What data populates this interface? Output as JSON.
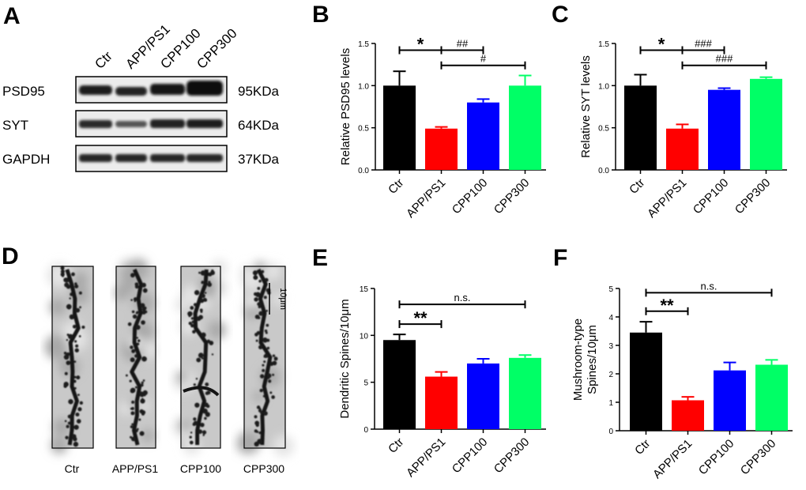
{
  "colors": {
    "ctr": "#000000",
    "app": "#ff0000",
    "cpp100": "#0000ff",
    "cpp300": "#00ff66",
    "axis": "#000000"
  },
  "panelA": {
    "letter": "A",
    "lanes": [
      "Ctr",
      "APP/PS1",
      "CPP100",
      "CPP300"
    ],
    "bands": [
      {
        "name": "PSD95",
        "size": "95KDa"
      },
      {
        "name": "SYT",
        "size": "64KDa"
      },
      {
        "name": "GAPDH",
        "size": "37KDa"
      }
    ]
  },
  "panelD": {
    "letter": "D",
    "labels": [
      "Ctr",
      "APP/PS1",
      "CPP100",
      "CPP300"
    ],
    "scale_label": "10μm"
  },
  "chart_data": [
    {
      "id": "B",
      "letter": "B",
      "type": "bar",
      "categories": [
        "Ctr",
        "APP/PS1",
        "CPP100",
        "CPP300"
      ],
      "values": [
        1.0,
        0.49,
        0.8,
        1.0
      ],
      "errors": [
        0.17,
        0.02,
        0.04,
        0.12
      ],
      "ylabel": "Relative PSD95 levels",
      "ylim": [
        0,
        1.5
      ],
      "yticks": [
        "0.0",
        "0.5",
        "1.0",
        "1.5"
      ],
      "yticks_values": [
        0,
        0.5,
        1.0,
        1.5
      ],
      "significance": [
        {
          "from": 0,
          "to": 1,
          "label": "*",
          "level": 1.42
        },
        {
          "from": 1,
          "to": 2,
          "label": "##",
          "level": 1.42
        },
        {
          "from": 1,
          "to": 3,
          "label": "#",
          "level": 1.24
        }
      ]
    },
    {
      "id": "C",
      "letter": "C",
      "type": "bar",
      "categories": [
        "Ctr",
        "APP/PS1",
        "CPP100",
        "CPP300"
      ],
      "values": [
        1.0,
        0.49,
        0.95,
        1.08
      ],
      "errors": [
        0.13,
        0.05,
        0.02,
        0.02
      ],
      "ylabel": "Relative SYT levels",
      "ylim": [
        0,
        1.5
      ],
      "yticks": [
        "0.0",
        "0.5",
        "1.0",
        "1.5"
      ],
      "yticks_values": [
        0,
        0.5,
        1.0,
        1.5
      ],
      "significance": [
        {
          "from": 0,
          "to": 1,
          "label": "*",
          "level": 1.42
        },
        {
          "from": 1,
          "to": 2,
          "label": "###",
          "level": 1.42
        },
        {
          "from": 1,
          "to": 3,
          "label": "###",
          "level": 1.24
        }
      ]
    },
    {
      "id": "E",
      "letter": "E",
      "type": "bar",
      "categories": [
        "Ctr",
        "APP/PS1",
        "CPP100",
        "CPP300"
      ],
      "values": [
        9.5,
        5.6,
        7.0,
        7.6
      ],
      "errors": [
        0.6,
        0.5,
        0.5,
        0.3
      ],
      "ylabel": "Dendritic Spines/10μm",
      "ylim": [
        0,
        15
      ],
      "yticks": [
        "0",
        "5",
        "10",
        "15"
      ],
      "yticks_values": [
        0,
        5,
        10,
        15
      ],
      "significance": [
        {
          "from": 0,
          "to": 1,
          "label": "**",
          "level": 11.2
        },
        {
          "from": 0,
          "to": 3,
          "label": "n.s.",
          "level": 13.3
        }
      ]
    },
    {
      "id": "F",
      "letter": "F",
      "type": "bar",
      "categories": [
        "Ctr",
        "APP/PS1",
        "CPP100",
        "CPP300"
      ],
      "values": [
        3.45,
        1.07,
        2.12,
        2.32
      ],
      "errors": [
        0.38,
        0.12,
        0.28,
        0.17
      ],
      "ylabel_lines": [
        "Mushroom-type",
        "Spines/10μm"
      ],
      "ylim": [
        0,
        5
      ],
      "yticks": [
        "0",
        "1",
        "2",
        "3",
        "4",
        "5"
      ],
      "yticks_values": [
        0,
        1,
        2,
        3,
        4,
        5
      ],
      "significance": [
        {
          "from": 0,
          "to": 1,
          "label": "**",
          "level": 4.2
        },
        {
          "from": 0,
          "to": 3,
          "label": "n.s.",
          "level": 4.85
        }
      ]
    }
  ]
}
